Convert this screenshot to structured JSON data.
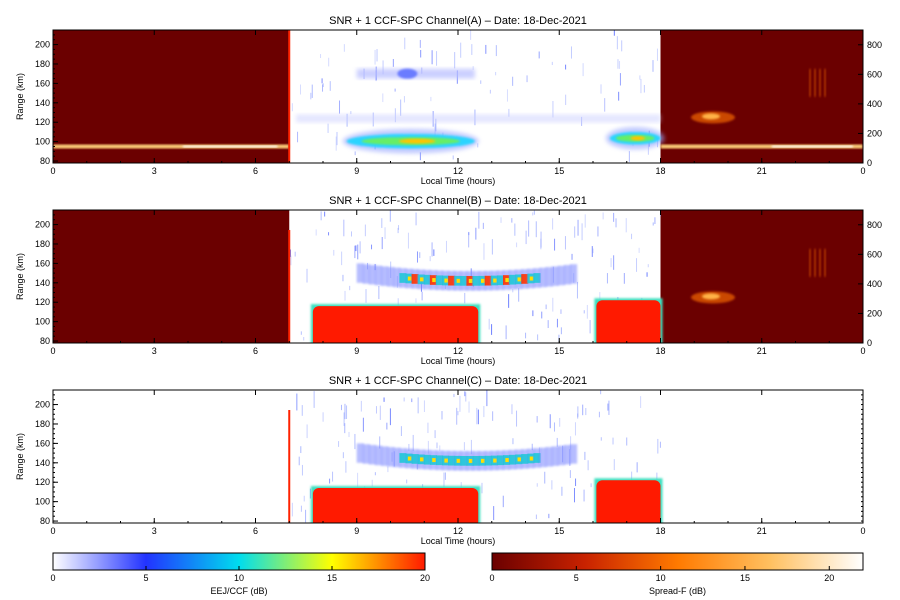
{
  "chart_data": [
    {
      "type": "heatmap",
      "title": "SNR + 1 CCF-SPC Channel(A) – Date: 18-Dec-2021",
      "xlabel": "Local Time (hours)",
      "ylabel": "Range (km)",
      "xlim": [
        0,
        24
      ],
      "ylim": [
        78,
        215
      ],
      "y2lim": [
        0,
        900
      ],
      "xticks": [
        "0",
        "3",
        "6",
        "9",
        "12",
        "15",
        "18",
        "21",
        "0"
      ],
      "yticks": [
        80,
        100,
        120,
        140,
        160,
        180,
        200
      ],
      "y2ticks": [
        0,
        200,
        400,
        600,
        800
      ],
      "regions": [
        {
          "colormap": "spread_f",
          "x": [
            0,
            7
          ]
        },
        {
          "colormap": "eej_ccf",
          "x": [
            7,
            18
          ]
        },
        {
          "colormap": "spread_f",
          "x": [
            18,
            24
          ]
        }
      ],
      "features": [
        {
          "name": "eej_core",
          "x": [
            8.7,
            12.5
          ],
          "y": [
            93,
            108
          ],
          "snr_db": 8
        },
        {
          "name": "eej_evening",
          "x": [
            16.5,
            18
          ],
          "y": [
            97,
            110
          ],
          "snr_db": 7
        },
        {
          "name": "valley_echo",
          "x": [
            9,
            12.5
          ],
          "y": [
            165,
            175
          ],
          "snr_db": 3
        },
        {
          "name": "night_layer_morning",
          "x": [
            0,
            7
          ],
          "y": [
            93,
            97
          ]
        },
        {
          "name": "night_layer_evening",
          "x": [
            18,
            24
          ],
          "y": [
            93,
            97
          ]
        }
      ]
    },
    {
      "type": "heatmap",
      "title": "SNR + 1 CCF-SPC Channel(B) – Date: 18-Dec-2021",
      "xlabel": "Local Time (hours)",
      "ylabel": "Range (km)",
      "xlim": [
        0,
        24
      ],
      "ylim": [
        78,
        215
      ],
      "y2lim": [
        0,
        900
      ],
      "xticks": [
        "0",
        "3",
        "6",
        "9",
        "12",
        "15",
        "18",
        "21",
        "0"
      ],
      "yticks": [
        80,
        100,
        120,
        140,
        160,
        180,
        200
      ],
      "y2ticks": [
        0,
        200,
        400,
        600,
        800
      ],
      "regions": [
        {
          "colormap": "spread_f",
          "x": [
            0,
            7
          ]
        },
        {
          "colormap": "eej_ccf",
          "x": [
            7,
            18
          ]
        },
        {
          "colormap": "spread_f",
          "x": [
            18,
            24
          ]
        }
      ],
      "features": [
        {
          "name": "eej_saturated",
          "x": [
            7.7,
            12.6
          ],
          "y": [
            78,
            116
          ],
          "snr_db": 20
        },
        {
          "name": "eej_saturated_evening",
          "x": [
            16.1,
            18
          ],
          "y": [
            78,
            122
          ],
          "snr_db": 20
        },
        {
          "name": "valley_echo_band",
          "x": [
            9,
            15.5
          ],
          "y": [
            130,
            155
          ],
          "snr_db": 12
        }
      ]
    },
    {
      "type": "heatmap",
      "title": "SNR + 1 CCF-SPC Channel(C) – Date: 18-Dec-2021",
      "xlabel": "Local Time (hours)",
      "ylabel": "Range (km)",
      "xlim": [
        0,
        24
      ],
      "ylim": [
        78,
        215
      ],
      "xticks": [
        "0",
        "3",
        "6",
        "9",
        "12",
        "15",
        "18",
        "21",
        "0"
      ],
      "yticks": [
        80,
        100,
        120,
        140,
        160,
        180,
        200
      ],
      "regions": [
        {
          "colormap": "eej_ccf",
          "x": [
            7,
            18
          ]
        }
      ],
      "features": [
        {
          "name": "eej_saturated",
          "x": [
            7.7,
            12.6
          ],
          "y": [
            78,
            114
          ],
          "snr_db": 20
        },
        {
          "name": "eej_saturated_evening",
          "x": [
            16.1,
            18
          ],
          "y": [
            78,
            122
          ],
          "snr_db": 20
        },
        {
          "name": "valley_echo_band",
          "x": [
            9,
            15.5
          ],
          "y": [
            130,
            155
          ],
          "snr_db": 10
        }
      ]
    }
  ],
  "colorbars": [
    {
      "label": "EEJ/CCF (dB)",
      "range": [
        0,
        20
      ],
      "ticks": [
        0,
        5,
        10,
        15,
        20
      ],
      "stops": [
        "#ffffff",
        "#2233ff",
        "#00ddee",
        "#ffff00",
        "#ff1a00"
      ]
    },
    {
      "label": "Spread-F (dB)",
      "range": [
        0,
        22
      ],
      "ticks": [
        0,
        5,
        10,
        15,
        20
      ],
      "stops": [
        "#6b0000",
        "#c82200",
        "#ff7a00",
        "#ffc060",
        "#ffffff"
      ]
    }
  ]
}
